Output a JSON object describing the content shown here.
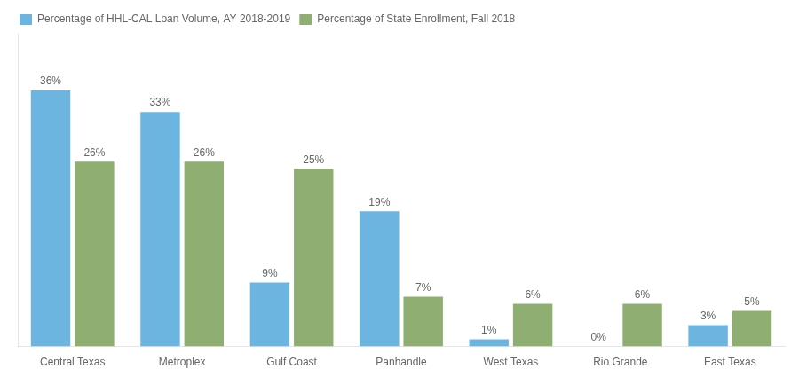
{
  "chart_data": {
    "type": "bar",
    "categories": [
      "Central Texas",
      "Metroplex",
      "Gulf Coast",
      "Panhandle",
      "West Texas",
      "Rio Grande",
      "East Texas"
    ],
    "series": [
      {
        "name": "Percentage of HHL-CAL Loan Volume, AY 2018-2019",
        "color": "#6BB5E0",
        "values": [
          36,
          33,
          9,
          19,
          1,
          0,
          3
        ],
        "value_labels": [
          "36%",
          "33%",
          "9%",
          "19%",
          "1%",
          "0%",
          "3%"
        ]
      },
      {
        "name": "Percentage of State Enrollment, Fall 2018",
        "color": "#8FAF72",
        "values": [
          26,
          26,
          25,
          7,
          6,
          6,
          5
        ],
        "value_labels": [
          "26%",
          "26%",
          "25%",
          "7%",
          "6%",
          "6%",
          "5%"
        ]
      }
    ],
    "ylim": [
      0,
      44
    ],
    "grid": false,
    "legend": "upper left",
    "data_labels": true,
    "tick_labels": "x"
  }
}
